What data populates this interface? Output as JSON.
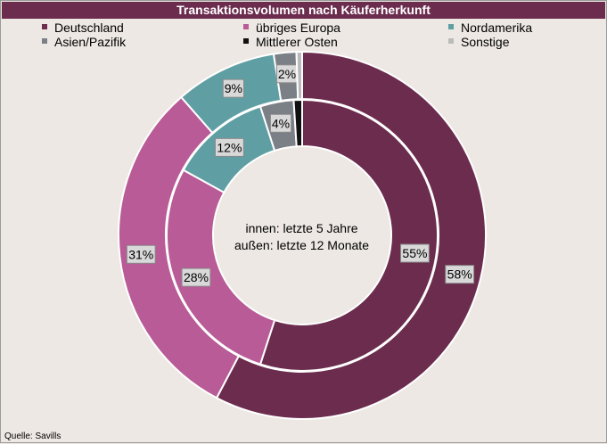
{
  "chart_data": {
    "type": "pie",
    "subtype": "donut",
    "title": "Transaktionsvolumen nach Käuferherkunft",
    "center_text": [
      "innen:  letzte  5 Jahre",
      "außen:  letzte  12 Monate"
    ],
    "categories": [
      "Deutschland",
      "übriges Europa",
      "Nordamerika",
      "Asien/Pazifik",
      "Mittlerer Osten",
      "Sonstige"
    ],
    "colors": [
      "#6b2c4e",
      "#b85b96",
      "#5f9ea3",
      "#7b7f86",
      "#111111",
      "#bbbbbb"
    ],
    "series": [
      {
        "ring": "outer",
        "values": [
          58,
          31,
          9,
          2,
          0,
          0.5
        ],
        "labels": [
          "58%",
          "31%",
          "9%",
          "2%",
          "",
          ""
        ]
      },
      {
        "ring": "inner",
        "values": [
          55,
          28,
          12,
          4,
          1,
          0
        ],
        "labels": [
          "55%",
          "28%",
          "12%",
          "4%",
          "",
          ""
        ]
      }
    ],
    "legend": "top"
  },
  "source": "Quelle: Savills"
}
